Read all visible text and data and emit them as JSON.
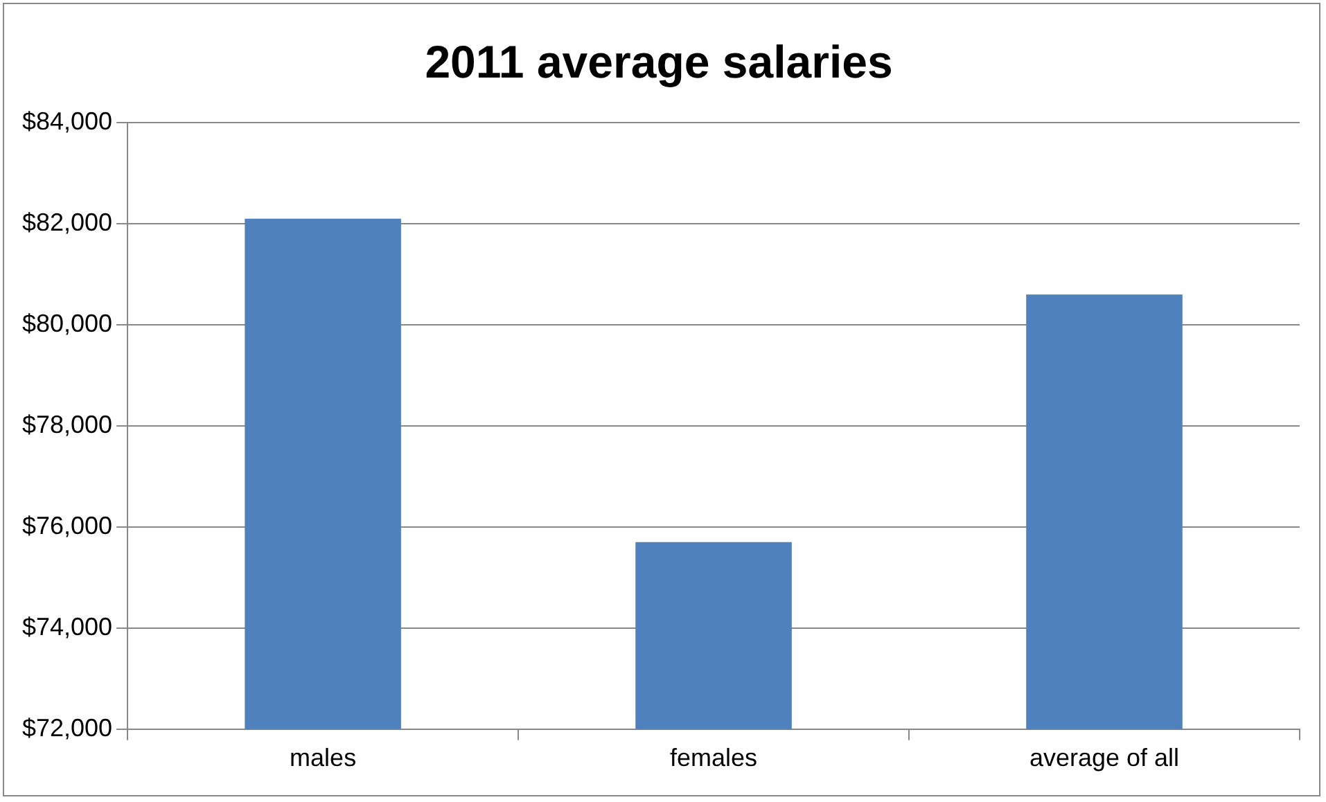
{
  "chart_data": {
    "type": "bar",
    "title": "2011 average salaries",
    "categories": [
      "males",
      "females",
      "average of all"
    ],
    "values": [
      82100,
      75700,
      80600
    ],
    "color": "#4f81bd",
    "ylim": [
      72000,
      84000
    ],
    "yticks": [
      {
        "value": 72000,
        "label": "$72,000"
      },
      {
        "value": 74000,
        "label": "$74,000"
      },
      {
        "value": 76000,
        "label": "$76,000"
      },
      {
        "value": 78000,
        "label": "$78,000"
      },
      {
        "value": 80000,
        "label": "$80,000"
      },
      {
        "value": 82000,
        "label": "$82,000"
      },
      {
        "value": 84000,
        "label": "$84,000"
      }
    ],
    "grid": "y",
    "legend": false
  }
}
